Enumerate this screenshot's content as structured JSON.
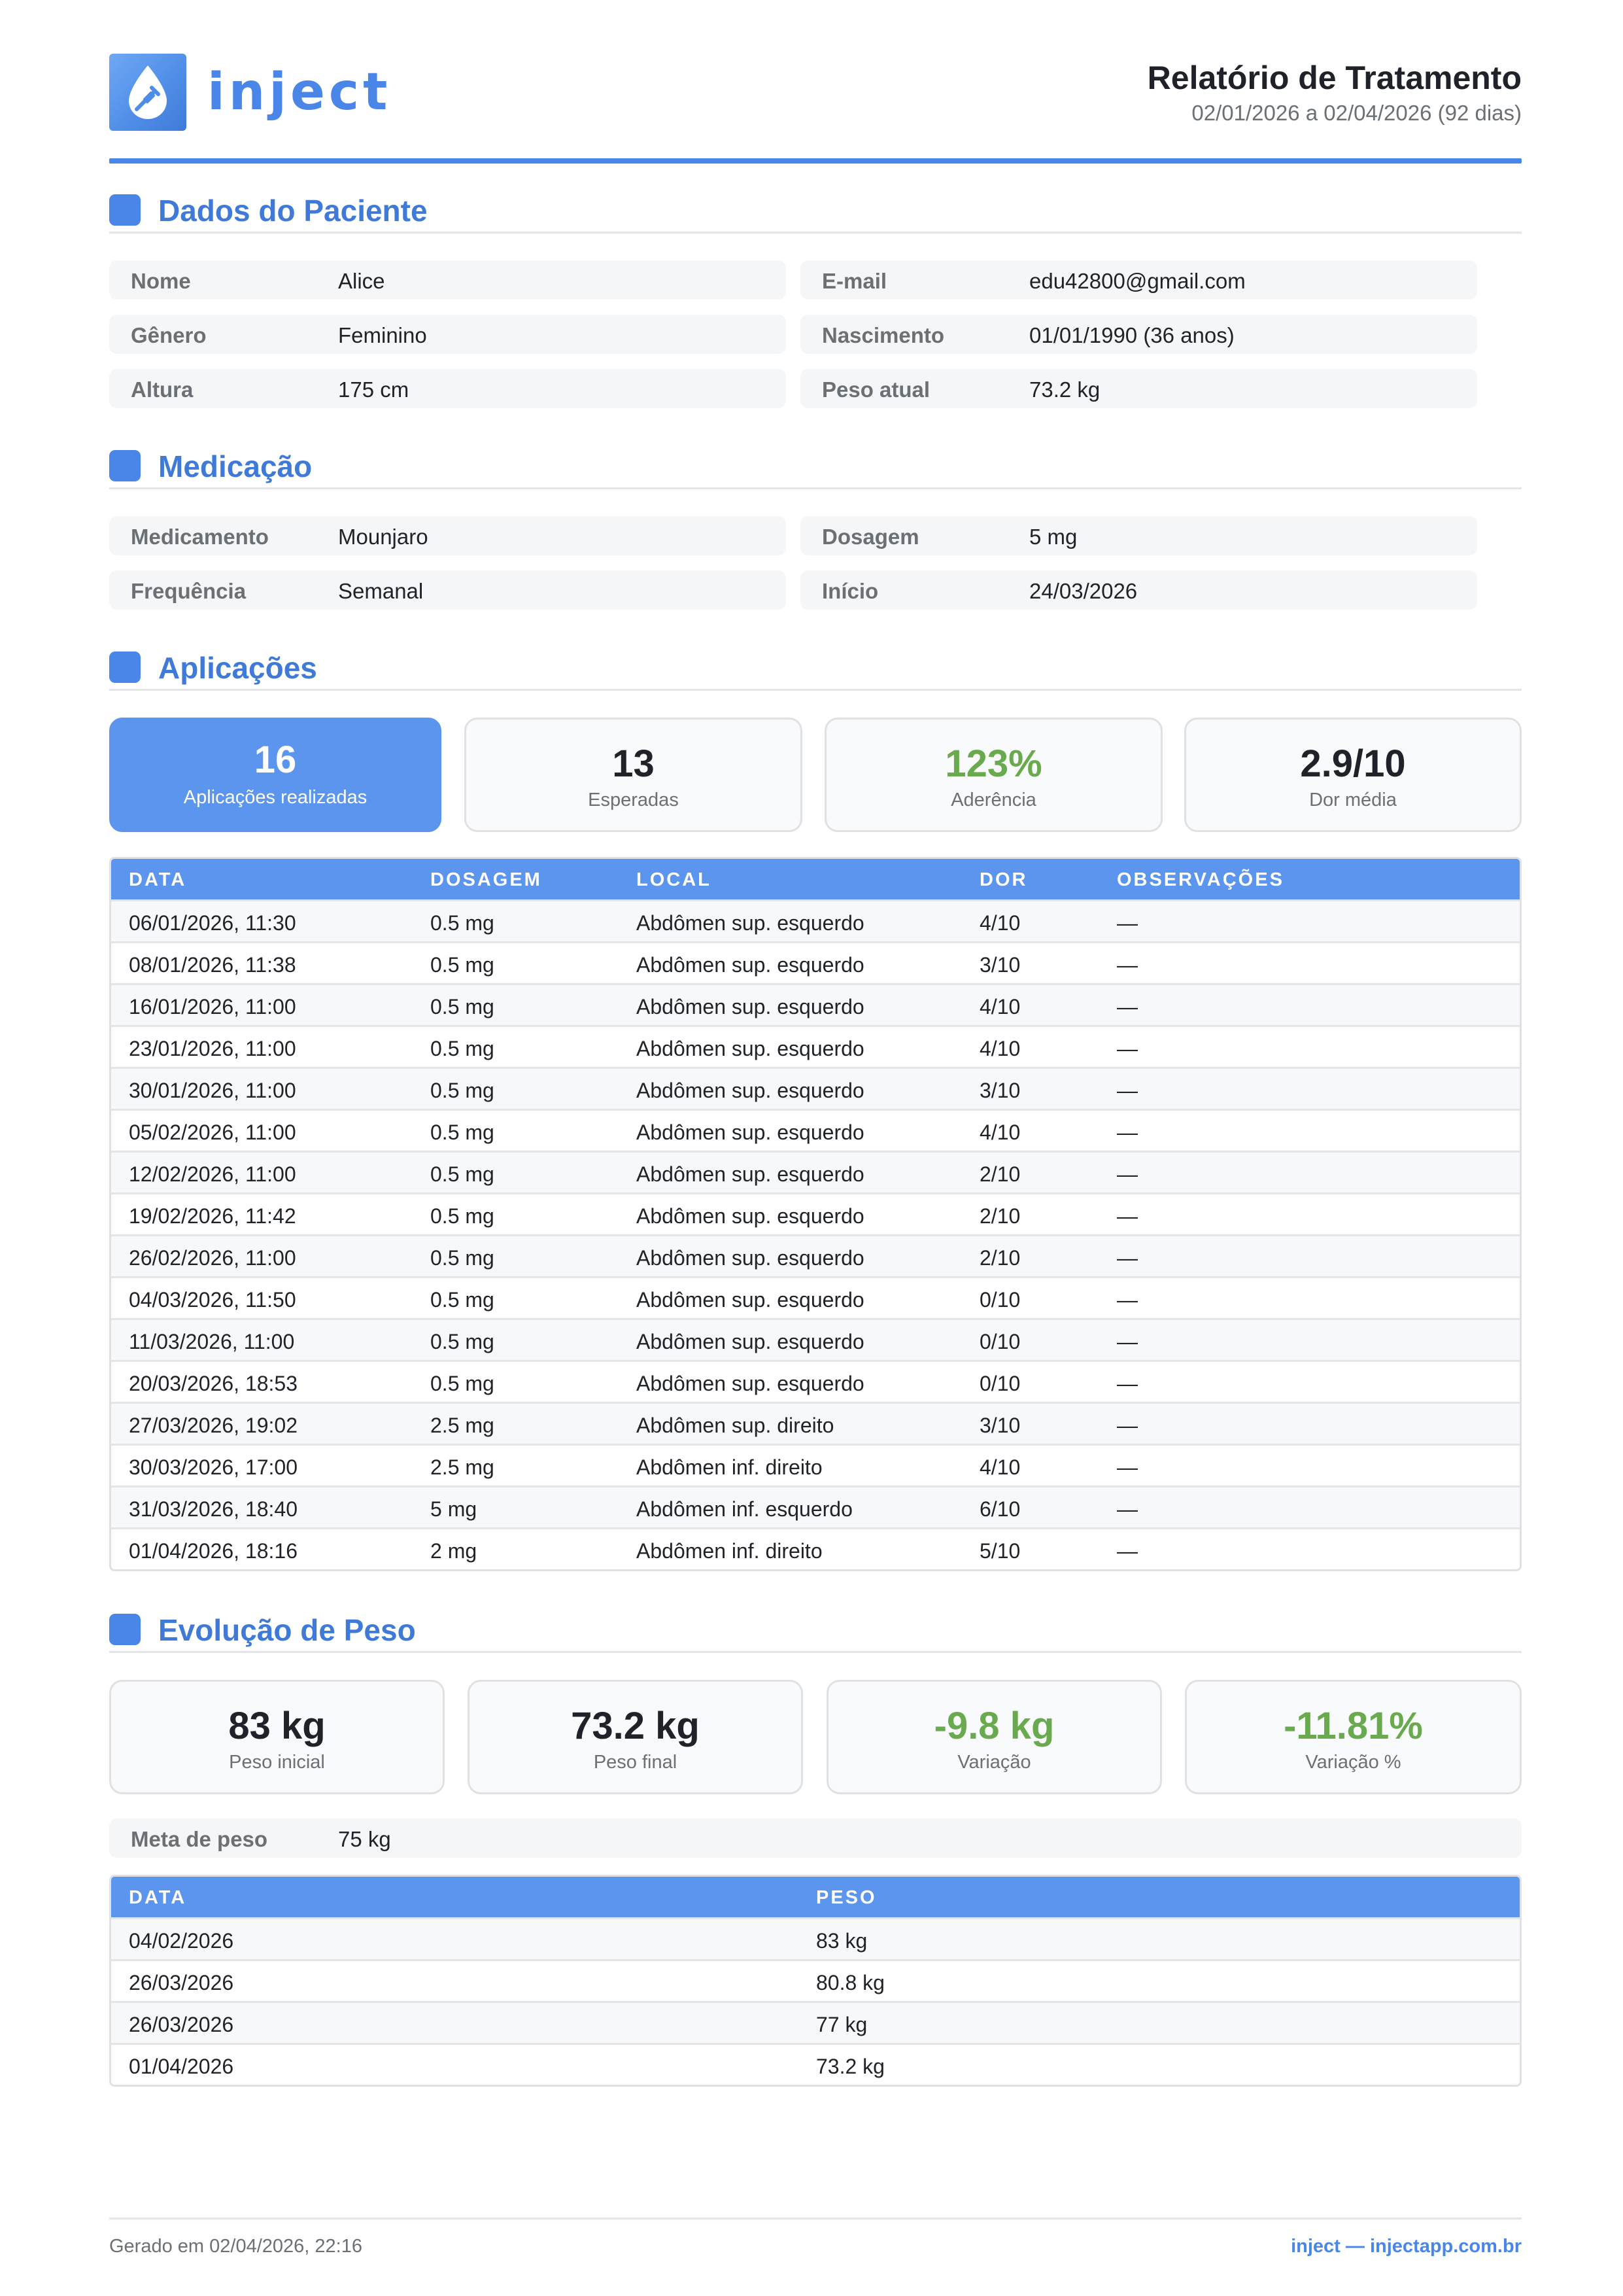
{
  "brand": {
    "name": "inject"
  },
  "report": {
    "title": "Relatório de Tratamento",
    "range": "02/01/2026 a 02/04/2026 (92 dias)"
  },
  "patient": {
    "title": "Dados do Paciente",
    "fields": [
      {
        "label": "Nome",
        "value": "Alice"
      },
      {
        "label": "E-mail",
        "value": "edu42800@gmail.com"
      },
      {
        "label": "Gênero",
        "value": "Feminino"
      },
      {
        "label": "Nascimento",
        "value": "01/01/1990 (36 anos)"
      },
      {
        "label": "Altura",
        "value": "175 cm"
      },
      {
        "label": "Peso atual",
        "value": "73.2 kg"
      }
    ]
  },
  "medication": {
    "title": "Medicação",
    "fields": [
      {
        "label": "Medicamento",
        "value": "Mounjaro"
      },
      {
        "label": "Dosagem",
        "value": "5 mg"
      },
      {
        "label": "Frequência",
        "value": "Semanal"
      },
      {
        "label": "Início",
        "value": "24/03/2026"
      }
    ]
  },
  "applications": {
    "title": "Aplicações",
    "stats": [
      {
        "value": "16",
        "label": "Aplicações realizadas"
      },
      {
        "value": "13",
        "label": "Esperadas"
      },
      {
        "value": "123%",
        "label": "Aderência"
      },
      {
        "value": "2.9/10",
        "label": "Dor média"
      }
    ],
    "columns": [
      "DATA",
      "DOSAGEM",
      "LOCAL",
      "DOR",
      "OBSERVAÇÕES"
    ],
    "rows": [
      [
        "06/01/2026, 11:30",
        "0.5 mg",
        "Abdômen sup. esquerdo",
        "4/10",
        "—"
      ],
      [
        "08/01/2026, 11:38",
        "0.5 mg",
        "Abdômen sup. esquerdo",
        "3/10",
        "—"
      ],
      [
        "16/01/2026, 11:00",
        "0.5 mg",
        "Abdômen sup. esquerdo",
        "4/10",
        "—"
      ],
      [
        "23/01/2026, 11:00",
        "0.5 mg",
        "Abdômen sup. esquerdo",
        "4/10",
        "—"
      ],
      [
        "30/01/2026, 11:00",
        "0.5 mg",
        "Abdômen sup. esquerdo",
        "3/10",
        "—"
      ],
      [
        "05/02/2026, 11:00",
        "0.5 mg",
        "Abdômen sup. esquerdo",
        "4/10",
        "—"
      ],
      [
        "12/02/2026, 11:00",
        "0.5 mg",
        "Abdômen sup. esquerdo",
        "2/10",
        "—"
      ],
      [
        "19/02/2026, 11:42",
        "0.5 mg",
        "Abdômen sup. esquerdo",
        "2/10",
        "—"
      ],
      [
        "26/02/2026, 11:00",
        "0.5 mg",
        "Abdômen sup. esquerdo",
        "2/10",
        "—"
      ],
      [
        "04/03/2026, 11:50",
        "0.5 mg",
        "Abdômen sup. esquerdo",
        "0/10",
        "—"
      ],
      [
        "11/03/2026, 11:00",
        "0.5 mg",
        "Abdômen sup. esquerdo",
        "0/10",
        "—"
      ],
      [
        "20/03/2026, 18:53",
        "0.5 mg",
        "Abdômen sup. esquerdo",
        "0/10",
        "—"
      ],
      [
        "27/03/2026, 19:02",
        "2.5 mg",
        "Abdômen sup. direito",
        "3/10",
        "—"
      ],
      [
        "30/03/2026, 17:00",
        "2.5 mg",
        "Abdômen inf. direito",
        "4/10",
        "—"
      ],
      [
        "31/03/2026, 18:40",
        "5 mg",
        "Abdômen inf. esquerdo",
        "6/10",
        "—"
      ],
      [
        "01/04/2026, 18:16",
        "2 mg",
        "Abdômen inf. direito",
        "5/10",
        "—"
      ]
    ]
  },
  "weight": {
    "title": "Evolução de Peso",
    "stats": [
      {
        "value": "83 kg",
        "label": "Peso inicial"
      },
      {
        "value": "73.2 kg",
        "label": "Peso final"
      },
      {
        "value": "-9.8 kg",
        "label": "Variação"
      },
      {
        "value": "-11.81%",
        "label": "Variação %"
      }
    ],
    "goal_label": "Meta de peso",
    "goal_value": "75 kg",
    "columns": [
      "DATA",
      "PESO"
    ],
    "rows": [
      [
        "04/02/2026",
        "83 kg"
      ],
      [
        "26/03/2026",
        "80.8 kg"
      ],
      [
        "26/03/2026",
        "77 kg"
      ],
      [
        "01/04/2026",
        "73.2 kg"
      ]
    ]
  },
  "footer": {
    "generated": "Gerado em 02/04/2026, 22:16",
    "site": "inject — injectapp.com.br"
  },
  "colors": {
    "accent": "#4a86e8",
    "header_fill": "#5b95ee",
    "positive": "#6aaa4e"
  }
}
